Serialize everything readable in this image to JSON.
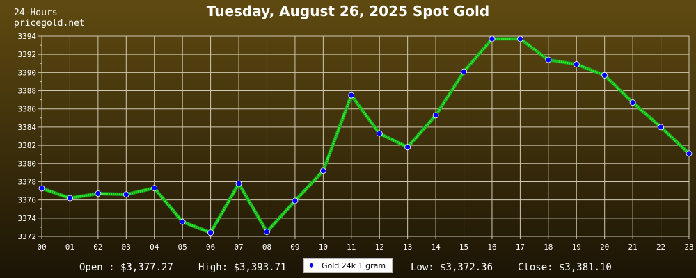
{
  "header": {
    "source_line1": "24-Hours",
    "source_line2": "pricegold.net"
  },
  "footer": {
    "open": "Open : $3,377.27",
    "high": "High: $3,393.71",
    "low": "Low: $3,372.36",
    "close": "Close: $3,381.10"
  },
  "colors": {
    "line": "#2ee82e",
    "marker": "#0000ff",
    "grid": "#cfc9b0"
  },
  "chart_data": {
    "type": "line",
    "title": "Tuesday, August 26, 2025 Spot Gold",
    "xlabel": "",
    "ylabel": "",
    "categories": [
      "00",
      "01",
      "02",
      "03",
      "04",
      "05",
      "06",
      "07",
      "08",
      "09",
      "10",
      "11",
      "12",
      "13",
      "14",
      "15",
      "16",
      "17",
      "18",
      "19",
      "20",
      "21",
      "22",
      "23"
    ],
    "ylim": [
      3372,
      3394
    ],
    "yticks": [
      3372,
      3374,
      3376,
      3378,
      3380,
      3382,
      3384,
      3386,
      3388,
      3390,
      3392,
      3394
    ],
    "grid": true,
    "legend_position": "bottom-center",
    "series": [
      {
        "name": "Gold 24k 1 gram",
        "values": [
          3377.27,
          3376.2,
          3376.7,
          3376.6,
          3377.3,
          3373.6,
          3372.4,
          3377.8,
          3372.5,
          3375.9,
          3379.2,
          3387.5,
          3383.3,
          3381.8,
          3385.3,
          3390.1,
          3393.7,
          3393.7,
          3391.4,
          3390.9,
          3389.7,
          3386.7,
          3384.0,
          3381.1
        ]
      }
    ]
  }
}
